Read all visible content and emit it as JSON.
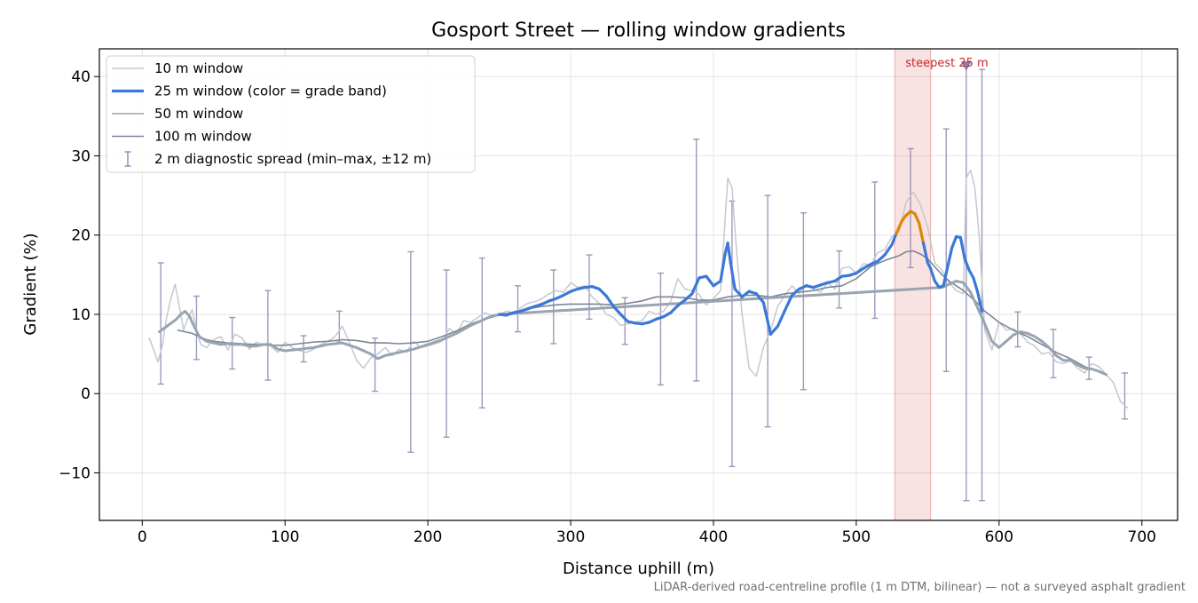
{
  "chart_data": {
    "type": "line",
    "title": "Gosport Street — rolling window gradients",
    "xlabel": "Distance uphill (m)",
    "ylabel": "Gradient (%)",
    "xlim": [
      -30,
      725
    ],
    "ylim": [
      -16,
      43.5
    ],
    "xticks": [
      0,
      100,
      200,
      300,
      400,
      500,
      600,
      700
    ],
    "yticks": [
      -10,
      0,
      10,
      20,
      30,
      40
    ],
    "xtick_labels": [
      "0",
      "100",
      "200",
      "300",
      "400",
      "500",
      "600",
      "700"
    ],
    "ytick_labels": [
      "−10",
      "0",
      "10",
      "20",
      "30",
      "40"
    ],
    "grid": true,
    "legend_position": "upper-left",
    "footnote": "LiDAR-derived road-centreline profile (1 m DTM, bilinear) — not a surveyed asphalt gradient",
    "highlight": {
      "x_range": [
        527,
        552
      ],
      "label": "steepest 25 m",
      "marker": {
        "x": 577,
        "y": 41.3
      },
      "color": "#d32f2f"
    },
    "grade_band_colors": {
      "normal": "#3b78d8",
      "steep": "#e08600"
    },
    "series": [
      {
        "name": "10 m window",
        "color": "#c3c9d0",
        "x": [
          5,
          8,
          11,
          14,
          17,
          20,
          23,
          26,
          29,
          32,
          35,
          38,
          41,
          45,
          50,
          55,
          60,
          65,
          70,
          75,
          80,
          85,
          90,
          95,
          100,
          105,
          110,
          115,
          120,
          125,
          130,
          135,
          140,
          145,
          150,
          155,
          160,
          165,
          170,
          175,
          180,
          185,
          190,
          195,
          200,
          205,
          210,
          215,
          220,
          225,
          230,
          235,
          240,
          245,
          250,
          255,
          260,
          265,
          270,
          275,
          280,
          285,
          290,
          295,
          300,
          305,
          310,
          315,
          320,
          325,
          330,
          335,
          340,
          345,
          350,
          355,
          360,
          365,
          370,
          375,
          380,
          385,
          390,
          395,
          400,
          405,
          410,
          413,
          416,
          420,
          425,
          430,
          435,
          440,
          445,
          450,
          455,
          460,
          465,
          470,
          475,
          480,
          485,
          490,
          495,
          500,
          505,
          510,
          515,
          520,
          525,
          530,
          535,
          540,
          545,
          550,
          555,
          560,
          565,
          570,
          575,
          577,
          580,
          583,
          586,
          590,
          595,
          600,
          605,
          610,
          615,
          620,
          625,
          630,
          635,
          640,
          645,
          650,
          655,
          660,
          665,
          670,
          675,
          680,
          685,
          690
        ],
        "y": [
          7,
          5.5,
          4,
          6,
          9.5,
          12,
          13.8,
          11,
          8,
          9.5,
          10.6,
          8,
          6.2,
          5.8,
          6.8,
          7.2,
          5.5,
          7.5,
          7,
          5.6,
          6.5,
          6.2,
          6,
          5.2,
          6.5,
          5.8,
          5.4,
          5.2,
          5.6,
          6.2,
          6.6,
          7.2,
          8.5,
          6.5,
          4.2,
          3.2,
          4.5,
          5,
          5.8,
          4.8,
          5.6,
          5.2,
          6.6,
          5.8,
          6,
          6.3,
          6.6,
          8.2,
          7.5,
          9.2,
          9,
          9.6,
          10.2,
          9.8,
          10,
          10.4,
          10.2,
          10.8,
          11.4,
          11.6,
          12,
          12.6,
          13,
          12.8,
          14,
          13.4,
          13.6,
          12.2,
          11.4,
          10,
          9.6,
          8.6,
          8.8,
          9,
          9.2,
          10.4,
          10,
          10.4,
          11.6,
          14.5,
          13.2,
          13,
          12.5,
          11.2,
          12,
          13,
          27.2,
          26,
          18.5,
          10,
          3.2,
          2.2,
          5.8,
          8,
          11,
          12.4,
          13.6,
          12.6,
          13.8,
          13.2,
          12.8,
          14,
          13.2,
          15.8,
          16,
          15.2,
          16.4,
          16.2,
          17.8,
          18.2,
          19.8,
          20.4,
          24.2,
          25.4,
          23.8,
          21,
          16.5,
          15.6,
          14,
          13,
          12.6,
          27.2,
          28.2,
          26,
          20,
          8,
          5.5,
          9,
          8,
          8.2,
          7.5,
          6.5,
          6,
          5,
          5.2,
          4,
          3.8,
          4.2,
          3.2,
          2.6,
          3.8,
          3.4,
          2.4,
          1.4,
          -1,
          -1.8
        ]
      },
      {
        "name": "25 m window (color = grade band)",
        "color": "#3b78d8",
        "color_steep": "#e08600",
        "steep_threshold": 20,
        "x": [
          250,
          255,
          260,
          265,
          270,
          275,
          280,
          285,
          290,
          295,
          300,
          305,
          310,
          315,
          320,
          325,
          330,
          335,
          340,
          345,
          350,
          355,
          360,
          365,
          370,
          375,
          380,
          385,
          390,
          395,
          400,
          405,
          408,
          410,
          412,
          415,
          420,
          425,
          430,
          435,
          440,
          445,
          450,
          455,
          460,
          465,
          470,
          475,
          480,
          485,
          490,
          495,
          500,
          505,
          510,
          515,
          520,
          525,
          528,
          532,
          535,
          538,
          541,
          544,
          547,
          550,
          552,
          555,
          558,
          561,
          564,
          567,
          570,
          573,
          576,
          579,
          582,
          585,
          588
        ],
        "y": [
          10,
          9.9,
          10.2,
          10.4,
          10.7,
          11,
          11.3,
          11.7,
          12,
          12.4,
          12.9,
          13.2,
          13.4,
          13.5,
          13.2,
          12.3,
          11,
          10,
          9.1,
          8.9,
          8.8,
          9,
          9.4,
          9.7,
          10.2,
          11.1,
          11.8,
          12.6,
          14.6,
          14.8,
          13.6,
          14.2,
          17.5,
          19,
          16.5,
          13.2,
          12.2,
          12.9,
          12.6,
          11.5,
          7.5,
          8.5,
          10.5,
          12.4,
          13.2,
          13.6,
          13.4,
          13.7,
          14,
          14.2,
          14.8,
          14.9,
          15.2,
          15.8,
          16.3,
          16.7,
          17.5,
          18.8,
          20.2,
          21.8,
          22.5,
          23,
          22.7,
          21.5,
          19,
          16.5,
          15.8,
          14.2,
          13.4,
          13.6,
          16,
          18.4,
          19.8,
          19.7,
          17,
          15.6,
          14.6,
          12.8,
          10.4
        ]
      },
      {
        "name": "50 m window",
        "color": "#99a4b2",
        "x": [
          12,
          15,
          18,
          21,
          24,
          27,
          30,
          33,
          36,
          40,
          45,
          50,
          55,
          60,
          65,
          70,
          75,
          80,
          85,
          90,
          95,
          100,
          110,
          120,
          130,
          140,
          150,
          160,
          165,
          170,
          180,
          190,
          200,
          210,
          220,
          230,
          240,
          245,
          250,
          560,
          565,
          570,
          575,
          580,
          585,
          590,
          595,
          600,
          605,
          610,
          615,
          620,
          625,
          630,
          635,
          640,
          645,
          650,
          655,
          660,
          665,
          670,
          675
        ],
        "y": [
          7.8,
          8.2,
          8.6,
          9,
          9.4,
          10,
          10.4,
          9.8,
          8.6,
          7.2,
          6.6,
          6.4,
          6.2,
          6.3,
          6.2,
          6.2,
          6,
          6,
          6.2,
          6.2,
          5.6,
          5.4,
          5.6,
          5.8,
          6.2,
          6.4,
          5.8,
          5,
          4.4,
          4.8,
          5.2,
          5.6,
          6.2,
          6.8,
          7.6,
          8.6,
          9.4,
          9.8,
          10,
          13.4,
          13.8,
          14.2,
          14,
          12.8,
          10.8,
          8.8,
          6.6,
          5.8,
          6.6,
          7.4,
          7.8,
          7.6,
          7.2,
          6.6,
          5.8,
          4.8,
          4.2,
          4.2,
          3.6,
          3.2,
          3.1,
          2.8,
          2.4
        ]
      },
      {
        "name": "100 m window",
        "color": "#7c8696",
        "x": [
          25,
          30,
          35,
          40,
          45,
          50,
          55,
          60,
          70,
          80,
          90,
          100,
          110,
          120,
          130,
          140,
          150,
          160,
          170,
          180,
          190,
          200,
          210,
          220,
          230,
          240,
          250,
          260,
          270,
          280,
          290,
          300,
          310,
          320,
          330,
          340,
          350,
          360,
          370,
          380,
          390,
          400,
          410,
          420,
          430,
          440,
          450,
          460,
          470,
          480,
          490,
          500,
          510,
          520,
          530,
          535,
          540,
          545,
          550,
          555,
          560,
          565,
          570,
          575,
          580,
          585,
          590,
          600,
          610,
          620,
          630,
          640,
          650,
          660,
          670
        ],
        "y": [
          8,
          7.8,
          7.6,
          7.2,
          6.8,
          6.6,
          6.5,
          6.4,
          6.3,
          6.2,
          6.1,
          6.1,
          6.3,
          6.5,
          6.6,
          6.8,
          6.7,
          6.4,
          6.4,
          6.3,
          6.4,
          6.6,
          7.2,
          7.9,
          8.8,
          9.4,
          9.9,
          10.3,
          10.7,
          11,
          11.2,
          11.3,
          11.3,
          11.3,
          11.2,
          11.4,
          11.7,
          12.2,
          12.2,
          12.1,
          11.8,
          11.8,
          12.2,
          12.4,
          12.4,
          12.2,
          12.6,
          12.8,
          13,
          13.4,
          13.6,
          14.5,
          16,
          16.8,
          17.4,
          17.9,
          18,
          17.6,
          17,
          16,
          15,
          14.2,
          13.6,
          13,
          12.2,
          11.4,
          10.4,
          9,
          8,
          7.2,
          6.2,
          5.2,
          4.4,
          3.4,
          2.8
        ]
      }
    ],
    "errorbars": {
      "name": "2 m diagnostic spread (min–max, ±12 m)",
      "color": "#8f86b0",
      "points": [
        {
          "x": 13,
          "low": 1.2,
          "high": 16.5
        },
        {
          "x": 38,
          "low": 4.3,
          "high": 12.3
        },
        {
          "x": 63,
          "low": 3.1,
          "high": 9.6
        },
        {
          "x": 88,
          "low": 1.7,
          "high": 13
        },
        {
          "x": 113,
          "low": 4,
          "high": 7.3
        },
        {
          "x": 138,
          "low": 6.5,
          "high": 10.4
        },
        {
          "x": 163,
          "low": 0.3,
          "high": 7
        },
        {
          "x": 188,
          "low": -7.4,
          "high": 17.9
        },
        {
          "x": 213,
          "low": -5.5,
          "high": 15.6
        },
        {
          "x": 238,
          "low": -1.8,
          "high": 17.1
        },
        {
          "x": 263,
          "low": 7.8,
          "high": 13.6
        },
        {
          "x": 288,
          "low": 6.3,
          "high": 15.6
        },
        {
          "x": 313,
          "low": 9.4,
          "high": 17.5
        },
        {
          "x": 338,
          "low": 6.2,
          "high": 12.1
        },
        {
          "x": 363,
          "low": 1.1,
          "high": 15.2
        },
        {
          "x": 388,
          "low": 1.6,
          "high": 32.1
        },
        {
          "x": 413,
          "low": -9.2,
          "high": 24.3
        },
        {
          "x": 438,
          "low": -4.2,
          "high": 25
        },
        {
          "x": 463,
          "low": 0.5,
          "high": 22.8
        },
        {
          "x": 488,
          "low": 10.8,
          "high": 18
        },
        {
          "x": 513,
          "low": 9.5,
          "high": 26.7
        },
        {
          "x": 538,
          "low": 15.9,
          "high": 30.9
        },
        {
          "x": 563,
          "low": 2.8,
          "high": 33.4
        },
        {
          "x": 577,
          "low": -13.5,
          "high": 41.3
        },
        {
          "x": 588,
          "low": -13.5,
          "high": 40.9
        },
        {
          "x": 613,
          "low": 5.9,
          "high": 10.3
        },
        {
          "x": 638,
          "low": 2,
          "high": 8.1
        },
        {
          "x": 663,
          "low": 1.8,
          "high": 4.6
        },
        {
          "x": 688,
          "low": -3.2,
          "high": 2.6
        }
      ]
    }
  }
}
